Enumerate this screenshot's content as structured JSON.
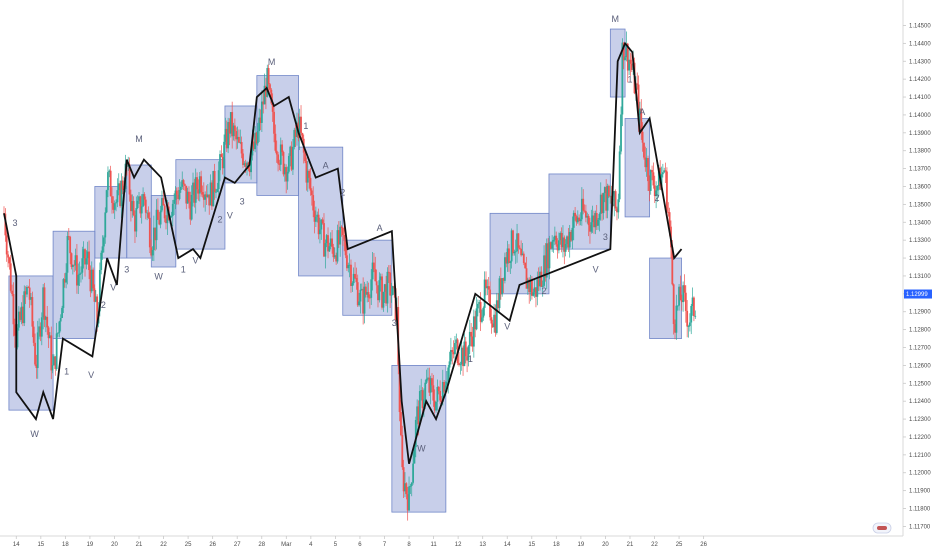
{
  "chart_data": {
    "type": "candlestick",
    "instrument_hint": "EUR/USD style FX pair, hourly candles",
    "price_axis": {
      "ylim": [
        1.1168,
        1.1462
      ],
      "ticks": [
        "1.14500",
        "1.14400",
        "1.14300",
        "1.14200",
        "1.14100",
        "1.14000",
        "1.13900",
        "1.13800",
        "1.13700",
        "1.13600",
        "1.13500",
        "1.13400",
        "1.13300",
        "1.13200",
        "1.13100",
        "1.13000",
        "1.12900",
        "1.12800",
        "1.12700",
        "1.12600",
        "1.12500",
        "1.12400",
        "1.12300",
        "1.12200",
        "1.12100",
        "1.12000",
        "1.11900",
        "1.11800",
        "1.11700"
      ],
      "last_price": "1.12999",
      "last_price_value": 1.12999,
      "last_price_color": "#2962ff",
      "grid": false
    },
    "time_axis": {
      "xlim": [
        0,
        36.5
      ],
      "ticks": [
        {
          "label": "14",
          "x": 0.5
        },
        {
          "label": "15",
          "x": 1.5
        },
        {
          "label": "18",
          "x": 2.5
        },
        {
          "label": "19",
          "x": 3.5
        },
        {
          "label": "20",
          "x": 4.5
        },
        {
          "label": "21",
          "x": 5.5
        },
        {
          "label": "22",
          "x": 6.5
        },
        {
          "label": "25",
          "x": 7.5
        },
        {
          "label": "26",
          "x": 8.5
        },
        {
          "label": "27",
          "x": 9.5
        },
        {
          "label": "28",
          "x": 10.5
        },
        {
          "label": "Mar",
          "x": 11.5
        },
        {
          "label": "4",
          "x": 12.5
        },
        {
          "label": "5",
          "x": 13.5
        },
        {
          "label": "6",
          "x": 14.5
        },
        {
          "label": "7",
          "x": 15.5
        },
        {
          "label": "8",
          "x": 16.5
        },
        {
          "label": "11",
          "x": 17.5
        },
        {
          "label": "12",
          "x": 18.5
        },
        {
          "label": "13",
          "x": 19.5
        },
        {
          "label": "14",
          "x": 20.5
        },
        {
          "label": "15",
          "x": 21.5
        },
        {
          "label": "18",
          "x": 22.5
        },
        {
          "label": "19",
          "x": 23.5
        },
        {
          "label": "20",
          "x": 24.5
        },
        {
          "label": "21",
          "x": 25.5
        },
        {
          "label": "22",
          "x": 26.5
        },
        {
          "label": "25",
          "x": 27.5
        },
        {
          "label": "26",
          "x": 28.5
        }
      ]
    },
    "candle_path": [
      [
        0.0,
        1.1345
      ],
      [
        0.5,
        1.1275
      ],
      [
        1.0,
        1.1305
      ],
      [
        1.3,
        1.126
      ],
      [
        1.6,
        1.13
      ],
      [
        2.0,
        1.1255
      ],
      [
        2.3,
        1.129
      ],
      [
        2.6,
        1.133
      ],
      [
        3.0,
        1.131
      ],
      [
        3.4,
        1.132
      ],
      [
        3.8,
        1.1285
      ],
      [
        4.2,
        1.1365
      ],
      [
        4.6,
        1.135
      ],
      [
        5.0,
        1.137
      ],
      [
        5.3,
        1.134
      ],
      [
        5.7,
        1.1355
      ],
      [
        6.0,
        1.133
      ],
      [
        6.4,
        1.1345
      ],
      [
        6.8,
        1.135
      ],
      [
        7.2,
        1.136
      ],
      [
        7.6,
        1.135
      ],
      [
        8.0,
        1.1365
      ],
      [
        8.4,
        1.1355
      ],
      [
        8.8,
        1.137
      ],
      [
        9.2,
        1.1395
      ],
      [
        9.6,
        1.138
      ],
      [
        10.0,
        1.1375
      ],
      [
        10.3,
        1.1385
      ],
      [
        10.7,
        1.142
      ],
      [
        11.0,
        1.139
      ],
      [
        11.3,
        1.1375
      ],
      [
        11.6,
        1.137
      ],
      [
        12.0,
        1.1395
      ],
      [
        12.3,
        1.137
      ],
      [
        12.6,
        1.135
      ],
      [
        13.0,
        1.133
      ],
      [
        13.4,
        1.1325
      ],
      [
        13.8,
        1.133
      ],
      [
        14.2,
        1.131
      ],
      [
        14.6,
        1.1295
      ],
      [
        15.0,
        1.131
      ],
      [
        15.4,
        1.13
      ],
      [
        15.7,
        1.1305
      ],
      [
        16.0,
        1.129
      ],
      [
        16.2,
        1.12
      ],
      [
        16.5,
        1.1185
      ],
      [
        16.8,
        1.123
      ],
      [
        17.2,
        1.125
      ],
      [
        17.6,
        1.124
      ],
      [
        18.0,
        1.1255
      ],
      [
        18.4,
        1.127
      ],
      [
        18.8,
        1.1265
      ],
      [
        19.2,
        1.1285
      ],
      [
        19.6,
        1.13
      ],
      [
        20.0,
        1.1285
      ],
      [
        20.4,
        1.132
      ],
      [
        20.8,
        1.133
      ],
      [
        21.2,
        1.131
      ],
      [
        21.6,
        1.13
      ],
      [
        22.0,
        1.1315
      ],
      [
        22.4,
        1.1335
      ],
      [
        22.8,
        1.1325
      ],
      [
        23.2,
        1.134
      ],
      [
        23.6,
        1.1345
      ],
      [
        24.0,
        1.134
      ],
      [
        24.4,
        1.1355
      ],
      [
        24.8,
        1.135
      ],
      [
        25.0,
        1.1345
      ],
      [
        25.2,
        1.144
      ],
      [
        25.5,
        1.143
      ],
      [
        25.8,
        1.141
      ],
      [
        26.0,
        1.1385
      ],
      [
        26.3,
        1.1365
      ],
      [
        26.6,
        1.136
      ],
      [
        26.9,
        1.137
      ],
      [
        27.1,
        1.134
      ],
      [
        27.3,
        1.1285
      ],
      [
        27.6,
        1.13
      ],
      [
        27.9,
        1.1285
      ],
      [
        28.2,
        1.1295
      ]
    ],
    "zones": [
      {
        "x0": 0.2,
        "x1": 2.0,
        "y0": 1.1235,
        "y1": 1.131
      },
      {
        "x0": 2.0,
        "x1": 3.7,
        "y0": 1.1275,
        "y1": 1.1335
      },
      {
        "x0": 3.7,
        "x1": 5.0,
        "y0": 1.132,
        "y1": 1.136
      },
      {
        "x0": 5.0,
        "x1": 6.0,
        "y0": 1.132,
        "y1": 1.1372
      },
      {
        "x0": 6.0,
        "x1": 7.0,
        "y0": 1.1315,
        "y1": 1.1355
      },
      {
        "x0": 7.0,
        "x1": 9.0,
        "y0": 1.1325,
        "y1": 1.1375
      },
      {
        "x0": 9.0,
        "x1": 10.3,
        "y0": 1.1362,
        "y1": 1.1405
      },
      {
        "x0": 10.3,
        "x1": 12.0,
        "y0": 1.1355,
        "y1": 1.1422
      },
      {
        "x0": 12.0,
        "x1": 13.8,
        "y0": 1.131,
        "y1": 1.1382
      },
      {
        "x0": 13.8,
        "x1": 15.8,
        "y0": 1.1288,
        "y1": 1.133
      },
      {
        "x0": 15.8,
        "x1": 18.0,
        "y0": 1.1178,
        "y1": 1.126
      },
      {
        "x0": 19.8,
        "x1": 22.2,
        "y0": 1.13,
        "y1": 1.1345
      },
      {
        "x0": 22.2,
        "x1": 24.7,
        "y0": 1.1325,
        "y1": 1.1367
      },
      {
        "x0": 24.7,
        "x1": 25.3,
        "y0": 1.141,
        "y1": 1.1448
      },
      {
        "x0": 25.3,
        "x1": 26.3,
        "y0": 1.1343,
        "y1": 1.1398
      },
      {
        "x0": 26.3,
        "x1": 27.6,
        "y0": 1.1275,
        "y1": 1.132
      }
    ],
    "wave_path": [
      [
        0.0,
        1.1345
      ],
      [
        0.5,
        1.131
      ],
      [
        0.5,
        1.1245
      ],
      [
        1.3,
        1.123
      ],
      [
        1.6,
        1.1245
      ],
      [
        2.0,
        1.123
      ],
      [
        2.4,
        1.1275
      ],
      [
        3.6,
        1.1265
      ],
      [
        4.2,
        1.132
      ],
      [
        4.6,
        1.1305
      ],
      [
        5.0,
        1.1375
      ],
      [
        5.3,
        1.1365
      ],
      [
        5.7,
        1.1375
      ],
      [
        6.4,
        1.1365
      ],
      [
        7.1,
        1.132
      ],
      [
        7.7,
        1.1325
      ],
      [
        8.0,
        1.132
      ],
      [
        9.0,
        1.1365
      ],
      [
        9.4,
        1.1362
      ],
      [
        10.0,
        1.1372
      ],
      [
        10.3,
        1.141
      ],
      [
        10.7,
        1.1415
      ],
      [
        11.0,
        1.1405
      ],
      [
        11.6,
        1.141
      ],
      [
        12.0,
        1.139
      ],
      [
        12.7,
        1.1365
      ],
      [
        13.6,
        1.137
      ],
      [
        14.0,
        1.1325
      ],
      [
        15.8,
        1.1335
      ],
      [
        16.2,
        1.124
      ],
      [
        16.5,
        1.1205
      ],
      [
        17.2,
        1.124
      ],
      [
        17.6,
        1.123
      ],
      [
        18.0,
        1.1245
      ],
      [
        19.2,
        1.13
      ],
      [
        20.6,
        1.1285
      ],
      [
        21.0,
        1.1305
      ],
      [
        24.7,
        1.1325
      ],
      [
        25.0,
        1.143
      ],
      [
        25.3,
        1.144
      ],
      [
        25.6,
        1.1435
      ],
      [
        25.9,
        1.139
      ],
      [
        26.3,
        1.1398
      ],
      [
        27.3,
        1.132
      ],
      [
        27.6,
        1.1325
      ]
    ],
    "segment_labels": [
      {
        "text": "3",
        "x": 0.45,
        "y": 1.1338
      },
      {
        "text": "W",
        "x": 1.25,
        "y": 1.122
      },
      {
        "text": "1",
        "x": 2.55,
        "y": 1.1255
      },
      {
        "text": "V",
        "x": 3.55,
        "y": 1.1253
      },
      {
        "text": "2",
        "x": 4.05,
        "y": 1.1292
      },
      {
        "text": "V",
        "x": 4.45,
        "y": 1.1302
      },
      {
        "text": "3",
        "x": 5.0,
        "y": 1.1312
      },
      {
        "text": "M",
        "x": 5.5,
        "y": 1.1385
      },
      {
        "text": "W",
        "x": 6.3,
        "y": 1.1308
      },
      {
        "text": "1",
        "x": 7.3,
        "y": 1.1312
      },
      {
        "text": "V",
        "x": 7.8,
        "y": 1.1317
      },
      {
        "text": "2",
        "x": 8.8,
        "y": 1.134
      },
      {
        "text": "V",
        "x": 9.2,
        "y": 1.1342
      },
      {
        "text": "3",
        "x": 9.7,
        "y": 1.135
      },
      {
        "text": "M",
        "x": 10.9,
        "y": 1.1428
      },
      {
        "text": "1",
        "x": 12.3,
        "y": 1.1392
      },
      {
        "text": "A",
        "x": 13.1,
        "y": 1.137
      },
      {
        "text": "2",
        "x": 13.8,
        "y": 1.1355
      },
      {
        "text": "A",
        "x": 15.3,
        "y": 1.1335
      },
      {
        "text": "3",
        "x": 15.9,
        "y": 1.1282
      },
      {
        "text": "W",
        "x": 17.0,
        "y": 1.1212
      },
      {
        "text": "1",
        "x": 19.0,
        "y": 1.1262
      },
      {
        "text": "V",
        "x": 20.5,
        "y": 1.128
      },
      {
        "text": "2",
        "x": 22.0,
        "y": 1.13
      },
      {
        "text": "V",
        "x": 24.1,
        "y": 1.1312
      },
      {
        "text": "3",
        "x": 24.5,
        "y": 1.133
      },
      {
        "text": "M",
        "x": 24.9,
        "y": 1.1452
      },
      {
        "text": "1",
        "x": 25.5,
        "y": 1.1418
      },
      {
        "text": "A",
        "x": 26.0,
        "y": 1.14
      },
      {
        "text": "2",
        "x": 26.6,
        "y": 1.1352
      }
    ]
  }
}
